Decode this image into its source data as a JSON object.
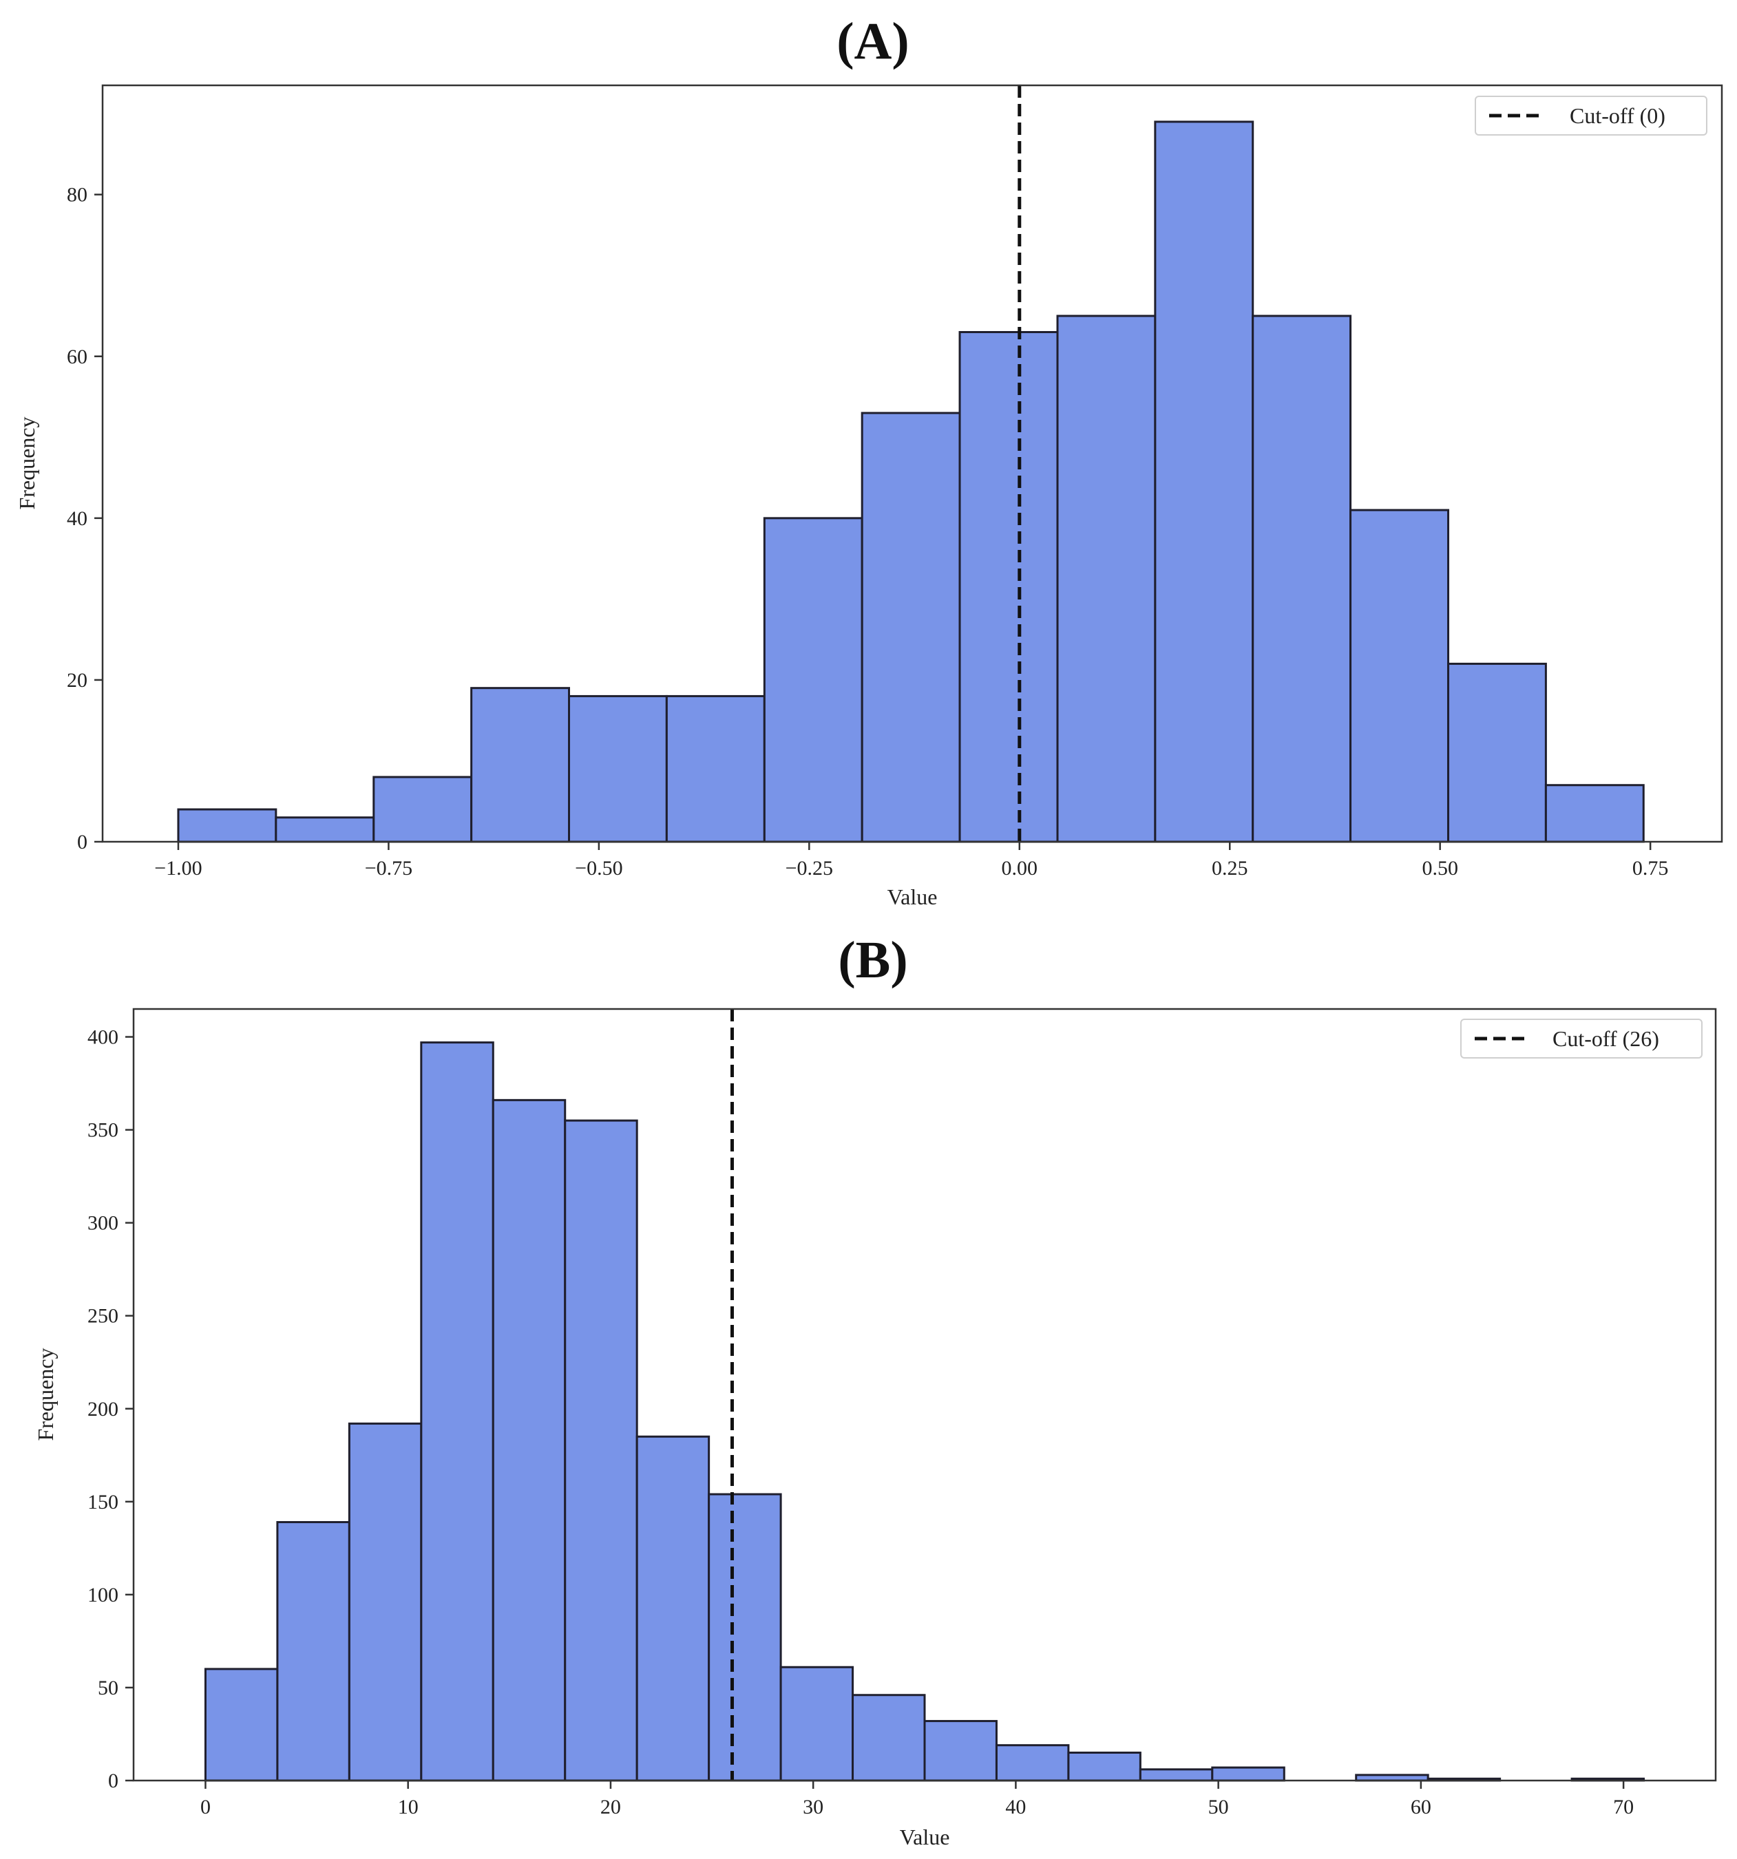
{
  "chart_data": [
    {
      "panel": "(A)",
      "type": "histogram",
      "title": "",
      "xlabel": "Value",
      "ylabel": "Frequency",
      "bin_edges": [
        -1.0,
        -0.8839,
        -0.7677,
        -0.6516,
        -0.5355,
        -0.4194,
        -0.3032,
        -0.1871,
        -0.071,
        0.0452,
        0.1613,
        0.2774,
        0.3935,
        0.5097,
        0.6258,
        0.7419
      ],
      "values": [
        4,
        3,
        8,
        19,
        18,
        18,
        40,
        53,
        63,
        65,
        89,
        65,
        41,
        22,
        7
      ],
      "xlim": [
        -1.09,
        0.835
      ],
      "ylim": [
        0,
        93.5
      ],
      "xticks": [
        -1.0,
        -0.75,
        -0.5,
        -0.25,
        0.0,
        0.25,
        0.5,
        0.75
      ],
      "xtick_labels": [
        "−1.00",
        "−0.75",
        "−0.50",
        "−0.25",
        "0.00",
        "0.25",
        "0.50",
        "0.75"
      ],
      "yticks": [
        0,
        20,
        40,
        60,
        80
      ],
      "ytick_labels": [
        "0",
        "20",
        "40",
        "60",
        "80"
      ],
      "cutoff": 0,
      "legend": {
        "label": "Cut-off (0)",
        "position": "top-right"
      },
      "grid": false
    },
    {
      "panel": "(B)",
      "type": "histogram",
      "title": "",
      "xlabel": "Value",
      "ylabel": "Frequency",
      "bin_edges": [
        0,
        3.55,
        7.1,
        10.65,
        14.2,
        17.75,
        21.3,
        24.85,
        28.4,
        31.95,
        35.5,
        39.05,
        42.6,
        46.15,
        49.7,
        53.25,
        56.8,
        60.35,
        63.9,
        67.45,
        71.0
      ],
      "values": [
        60,
        139,
        192,
        397,
        366,
        355,
        185,
        154,
        61,
        46,
        32,
        19,
        15,
        6,
        7,
        0,
        3,
        1,
        0,
        1
      ],
      "xlim": [
        -3.55,
        74.55
      ],
      "ylim": [
        0,
        415
      ],
      "xticks": [
        0,
        10,
        20,
        30,
        40,
        50,
        60,
        70
      ],
      "xtick_labels": [
        "0",
        "10",
        "20",
        "30",
        "40",
        "50",
        "60",
        "70"
      ],
      "yticks": [
        0,
        50,
        100,
        150,
        200,
        250,
        300,
        350,
        400
      ],
      "ytick_labels": [
        "0",
        "50",
        "100",
        "150",
        "200",
        "250",
        "300",
        "350",
        "400"
      ],
      "cutoff": 26,
      "legend": {
        "label": "Cut-off (26)",
        "position": "top-right"
      },
      "grid": false
    }
  ]
}
